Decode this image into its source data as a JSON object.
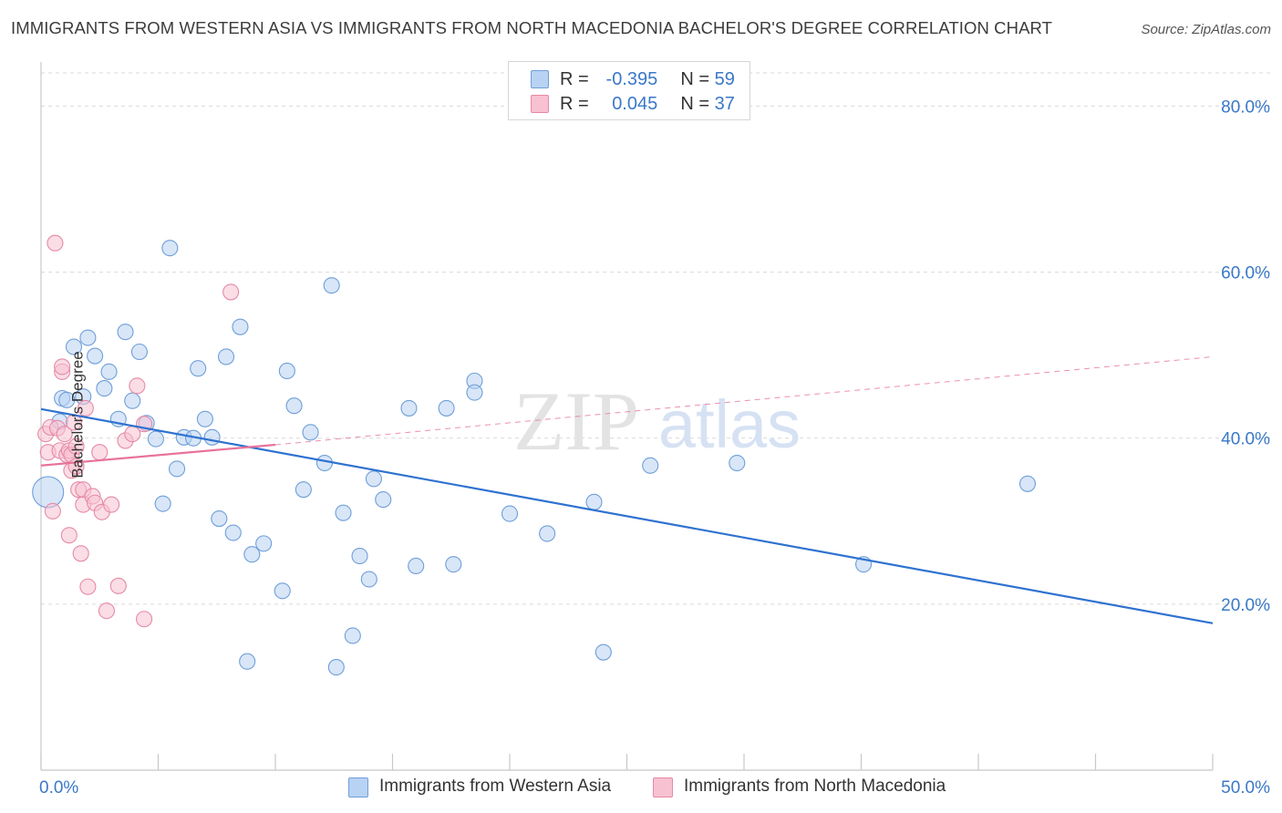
{
  "header": {
    "title": "IMMIGRANTS FROM WESTERN ASIA VS IMMIGRANTS FROM NORTH MACEDONIA BACHELOR'S DEGREE CORRELATION CHART",
    "source": "Source: ZipAtlas.com"
  },
  "legend": {
    "rows": [
      {
        "r_label": "R =",
        "r_value": "-0.395",
        "n_label": "N =",
        "n_value": "59"
      },
      {
        "r_label": "R =",
        "r_value": "0.045",
        "n_label": "N =",
        "n_value": "37"
      }
    ]
  },
  "bottom_legend": {
    "series1": "Immigrants from Western Asia",
    "series2": "Immigrants from North Macedonia"
  },
  "watermark": {
    "zip": "ZIP",
    "atlas": "atlas"
  },
  "colors": {
    "blue_fill": "#b8d2f3",
    "blue_stroke": "#6f9fd8",
    "blue_line": "#2f72d0",
    "pink_fill": "#f7c1d1",
    "pink_stroke": "#e58aa6",
    "pink_line": "#e8739a",
    "tick_text": "#3a78c8",
    "grid": "#d9d9d9"
  },
  "chart_data": {
    "type": "scatter",
    "title": "IMMIGRANTS FROM WESTERN ASIA VS IMMIGRANTS FROM NORTH MACEDONIA BACHELOR'S DEGREE CORRELATION CHART",
    "xlabel": "",
    "ylabel": "Bachelor's Degree",
    "xlim": [
      0,
      50
    ],
    "ylim": [
      0,
      84
    ],
    "x_tick_labels": [
      "0.0%",
      "50.0%"
    ],
    "y_ticks": [
      20,
      40,
      60,
      80
    ],
    "y_tick_labels": [
      "20.0%",
      "40.0%",
      "60.0%",
      "80.0%"
    ],
    "grid": true,
    "series": [
      {
        "name": "Immigrants from Western Asia",
        "color": "#b8d2f3",
        "r": -0.395,
        "n": 59,
        "points": [
          [
            0.3,
            33.5
          ],
          [
            0.8,
            42.0
          ],
          [
            0.9,
            44.8
          ],
          [
            1.1,
            44.6
          ],
          [
            1.4,
            51.0
          ],
          [
            1.8,
            45.0
          ],
          [
            2.0,
            52.1
          ],
          [
            2.3,
            49.9
          ],
          [
            2.7,
            46.0
          ],
          [
            2.9,
            48.0
          ],
          [
            3.3,
            42.3
          ],
          [
            3.6,
            52.8
          ],
          [
            3.9,
            44.5
          ],
          [
            4.2,
            50.4
          ],
          [
            4.5,
            41.8
          ],
          [
            4.9,
            39.9
          ],
          [
            5.2,
            32.1
          ],
          [
            5.5,
            62.9
          ],
          [
            5.8,
            36.3
          ],
          [
            6.1,
            40.1
          ],
          [
            6.5,
            40.0
          ],
          [
            6.7,
            48.4
          ],
          [
            7.0,
            42.3
          ],
          [
            7.3,
            40.1
          ],
          [
            7.6,
            30.3
          ],
          [
            7.9,
            49.8
          ],
          [
            8.2,
            28.6
          ],
          [
            8.5,
            53.4
          ],
          [
            8.8,
            13.1
          ],
          [
            9.0,
            26.0
          ],
          [
            9.5,
            27.3
          ],
          [
            10.3,
            21.6
          ],
          [
            10.5,
            48.1
          ],
          [
            10.8,
            43.9
          ],
          [
            11.2,
            33.8
          ],
          [
            11.5,
            40.7
          ],
          [
            12.1,
            37.0
          ],
          [
            12.4,
            58.4
          ],
          [
            12.6,
            12.4
          ],
          [
            12.9,
            31.0
          ],
          [
            13.3,
            16.2
          ],
          [
            13.6,
            25.8
          ],
          [
            14.0,
            23.0
          ],
          [
            14.2,
            35.1
          ],
          [
            14.6,
            32.6
          ],
          [
            15.7,
            43.6
          ],
          [
            16.0,
            24.6
          ],
          [
            17.3,
            43.6
          ],
          [
            17.6,
            24.8
          ],
          [
            18.5,
            46.9
          ],
          [
            18.5,
            45.5
          ],
          [
            20.0,
            30.9
          ],
          [
            21.6,
            28.5
          ],
          [
            23.6,
            32.3
          ],
          [
            24.0,
            14.2
          ],
          [
            26.0,
            36.7
          ],
          [
            29.7,
            37.0
          ],
          [
            35.1,
            24.8
          ],
          [
            42.1,
            34.5
          ]
        ],
        "trend": {
          "x": [
            0,
            50
          ],
          "y": [
            43.5,
            17.7
          ],
          "style": "solid"
        }
      },
      {
        "name": "Immigrants from North Macedonia",
        "color": "#f7c1d1",
        "r": 0.045,
        "n": 37,
        "points": [
          [
            0.2,
            40.5
          ],
          [
            0.3,
            38.3
          ],
          [
            0.4,
            41.3
          ],
          [
            0.5,
            31.2
          ],
          [
            0.7,
            41.2
          ],
          [
            0.8,
            38.5
          ],
          [
            0.6,
            63.5
          ],
          [
            0.9,
            48.0
          ],
          [
            0.9,
            48.6
          ],
          [
            1.0,
            40.5
          ],
          [
            1.1,
            38.0
          ],
          [
            1.2,
            38.5
          ],
          [
            1.2,
            28.3
          ],
          [
            1.3,
            38.0
          ],
          [
            1.3,
            36.1
          ],
          [
            1.4,
            41.9
          ],
          [
            1.5,
            36.6
          ],
          [
            1.6,
            33.8
          ],
          [
            1.7,
            26.1
          ],
          [
            1.8,
            33.8
          ],
          [
            1.8,
            32.0
          ],
          [
            1.9,
            43.6
          ],
          [
            2.2,
            33.0
          ],
          [
            2.3,
            32.2
          ],
          [
            2.0,
            22.1
          ],
          [
            2.5,
            38.3
          ],
          [
            2.6,
            31.1
          ],
          [
            2.8,
            19.2
          ],
          [
            3.0,
            32.0
          ],
          [
            3.3,
            22.2
          ],
          [
            3.6,
            39.7
          ],
          [
            3.9,
            40.5
          ],
          [
            4.1,
            46.3
          ],
          [
            4.4,
            41.7
          ],
          [
            4.4,
            18.2
          ],
          [
            8.1,
            57.6
          ],
          [
            1.5,
            39.0
          ]
        ],
        "trend": {
          "x": [
            0,
            10
          ],
          "y": [
            36.7,
            39.2
          ],
          "style": "solid"
        },
        "trend_extended": {
          "x": [
            10,
            50
          ],
          "y": [
            39.2,
            49.8
          ],
          "style": "dashed"
        }
      }
    ]
  }
}
